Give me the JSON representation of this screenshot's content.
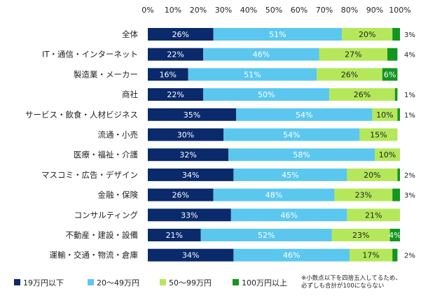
{
  "chart_data": {
    "type": "bar",
    "orientation": "horizontal",
    "stacked": true,
    "percent_axis": true,
    "xlim": [
      0,
      100
    ],
    "ticks": [
      "0%",
      "10%",
      "20%",
      "30%",
      "40%",
      "50%",
      "60%",
      "70%",
      "80%",
      "90%",
      "100%"
    ],
    "categories": [
      "全体",
      "IT・通信・インターネット",
      "製造業・メーカー",
      "商社",
      "サービス・飲食・人材ビジネス",
      "流通・小売",
      "医療・福祉・介護",
      "マスコミ・広告・デザイン",
      "金融・保険",
      "コンサルティング",
      "不動産・建設・設備",
      "運輸・交通・物流・倉庫"
    ],
    "series": [
      {
        "name": "19万円以下",
        "color": "#0a2a6b",
        "text_color": "#ffffff",
        "values": [
          26,
          22,
          16,
          22,
          35,
          30,
          32,
          34,
          26,
          33,
          21,
          34
        ]
      },
      {
        "name": "20～49万円",
        "color": "#5bc7ef",
        "text_color": "#ffffff",
        "values": [
          51,
          46,
          51,
          50,
          54,
          54,
          58,
          45,
          48,
          46,
          52,
          46
        ]
      },
      {
        "name": "50～99万円",
        "color": "#b4e85a",
        "text_color": "#222222",
        "values": [
          20,
          27,
          26,
          26,
          10,
          15,
          10,
          20,
          23,
          21,
          23,
          17
        ]
      },
      {
        "name": "100万円以上",
        "color": "#12961e",
        "text_color": "#ffffff",
        "values": [
          3,
          4,
          6,
          1,
          1,
          0,
          0,
          2,
          3,
          0,
          4,
          2
        ]
      }
    ],
    "segment_labels": [
      [
        "26%",
        "51%",
        "20%",
        ""
      ],
      [
        "22%",
        "46%",
        "27%",
        ""
      ],
      [
        "16%",
        "51%",
        "26%",
        "6%"
      ],
      [
        "22%",
        "50%",
        "26%",
        ""
      ],
      [
        "35%",
        "54%",
        "10%",
        ""
      ],
      [
        "30%",
        "54%",
        "15%",
        ""
      ],
      [
        "32%",
        "58%",
        "10%",
        ""
      ],
      [
        "34%",
        "45%",
        "20%",
        ""
      ],
      [
        "26%",
        "48%",
        "23%",
        ""
      ],
      [
        "33%",
        "46%",
        "21%",
        ""
      ],
      [
        "21%",
        "52%",
        "23%",
        "4%"
      ],
      [
        "34%",
        "46%",
        "17%",
        ""
      ]
    ],
    "outside_labels": [
      "3%",
      "4%",
      "",
      "1%",
      "1%",
      "",
      "",
      "2%",
      "3%",
      "",
      "",
      "2%"
    ],
    "legend_position": "bottom-left",
    "note": [
      "※小数点以下を四捨五入してるため、",
      "必ずしも合計が100にならない"
    ]
  }
}
